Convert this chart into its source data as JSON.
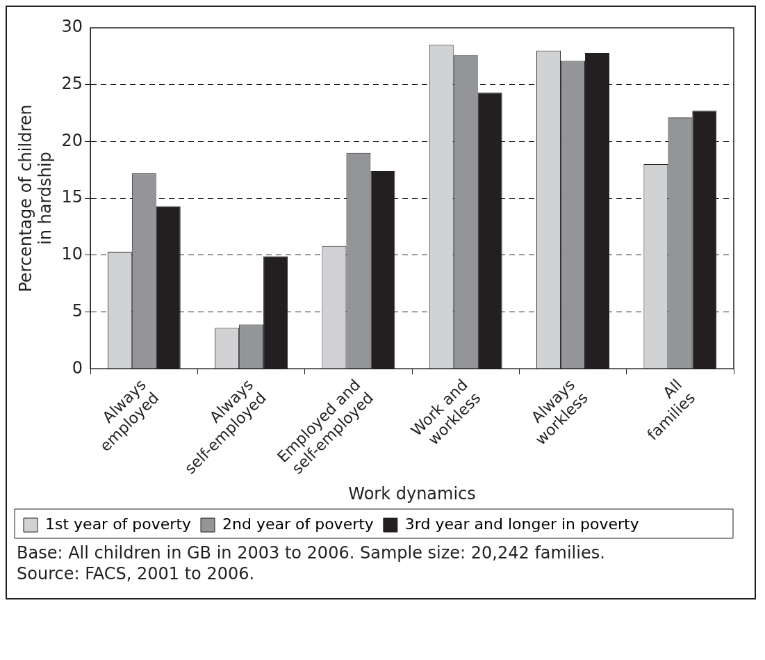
{
  "chart_data": {
    "type": "bar",
    "xlabel": "Work dynamics",
    "ylabel": "Percentage of children in hardship",
    "categories": [
      "Always employed",
      "Always self-employed",
      "Employed and self-employed",
      "Work and workless",
      "Always workless",
      "All families"
    ],
    "series": [
      {
        "name": "1st year of poverty",
        "color": "#d1d2d4",
        "values": [
          10.3,
          3.6,
          10.8,
          28.5,
          28.0,
          18.0
        ]
      },
      {
        "name": "2nd year of poverty",
        "color": "#939598",
        "values": [
          17.2,
          3.9,
          19.0,
          27.6,
          27.1,
          22.1
        ]
      },
      {
        "name": "3rd year and longer in poverty",
        "color": "#231f20",
        "values": [
          14.3,
          9.9,
          17.4,
          24.3,
          27.8,
          22.7
        ]
      }
    ],
    "ylim": [
      0,
      30
    ],
    "yticks": [
      0,
      5,
      10,
      15,
      20,
      25,
      30
    ],
    "grid": "y",
    "legend": "bottom",
    "annotations": [
      "Base: All children in GB in 2003 to 2006. Sample size: 20,242 families.",
      "Source: FACS, 2001 to 2006."
    ]
  }
}
